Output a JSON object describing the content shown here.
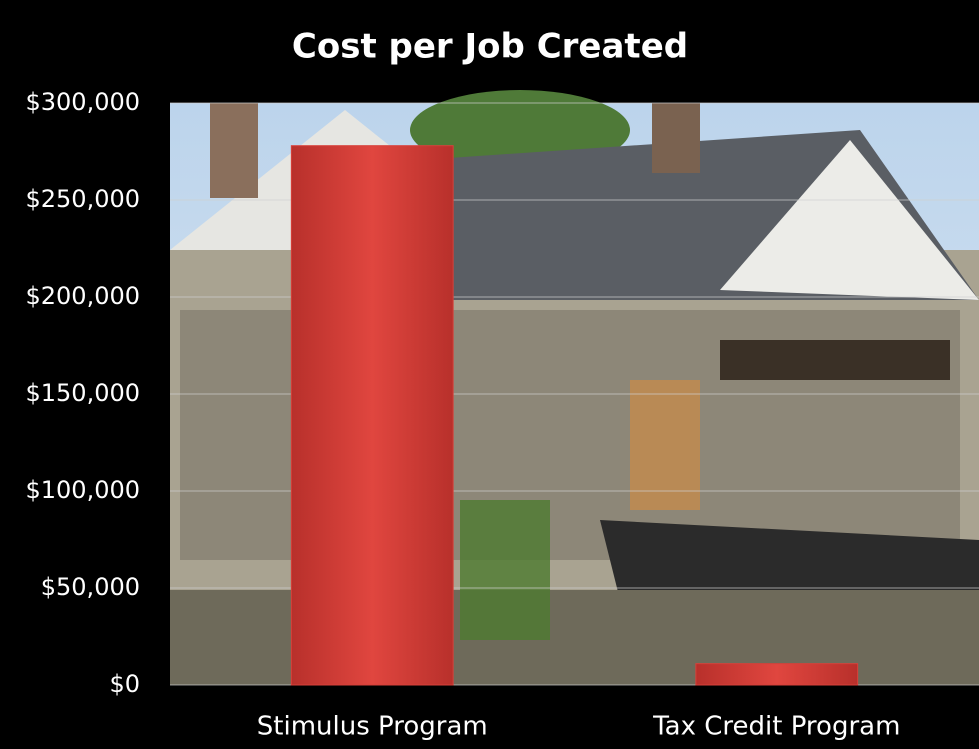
{
  "chart_data": {
    "type": "bar",
    "title": "Cost per Job Created",
    "categories": [
      "Stimulus Program",
      "Tax Credit Program"
    ],
    "values": [
      278000,
      11000
    ],
    "color": "#d8403a",
    "ylim": [
      0,
      300000
    ],
    "yticks": [
      {
        "value": 0,
        "label": "$0"
      },
      {
        "value": 50000,
        "label": "$50,000"
      },
      {
        "value": 100000,
        "label": "$100,000"
      },
      {
        "value": 150000,
        "label": "$150,000"
      },
      {
        "value": 200000,
        "label": "$200,000"
      },
      {
        "value": 250000,
        "label": "$250,000"
      },
      {
        "value": 300000,
        "label": "$300,000"
      }
    ],
    "grid": true
  }
}
